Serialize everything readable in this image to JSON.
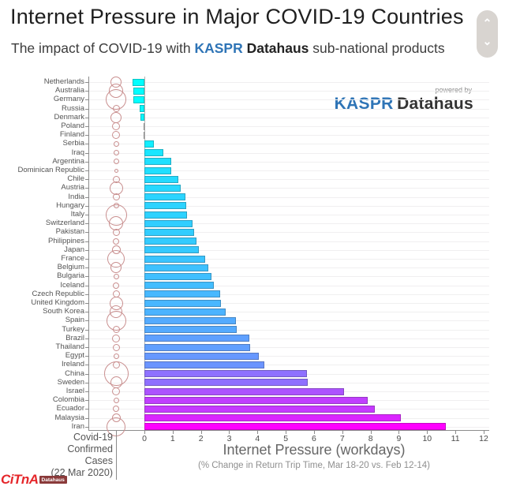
{
  "page": {
    "title": "Internet Pressure in Major COVID-19 Countries",
    "subtitle_prefix": "The impact of COVID-19 with ",
    "subtitle_brand1": "KASPR",
    "subtitle_brand2": "Datahaus",
    "subtitle_suffix": " sub-national products"
  },
  "scroll_widget": {
    "up_glyph": "⌃",
    "down_glyph": "⌄"
  },
  "logo": {
    "powered_by": "powered by",
    "brand1": "KASPR",
    "brand2": "Datahaus"
  },
  "watermark": {
    "text": "CiTnA",
    "badge": "Datahaus"
  },
  "chart_data": {
    "type": "bar",
    "orientation": "horizontal",
    "xlabel": "Internet Pressure (workdays)",
    "xlabel_note": "(% Change in Return Trip Time, Mar 18-20 vs. Feb 12-14)",
    "bubble_axis_note_lines": [
      "Covid-19",
      "Confirmed",
      "Cases",
      "(22 Mar 2020)"
    ],
    "x_ticks": [
      0,
      1,
      2,
      3,
      4,
      5,
      6,
      7,
      8,
      9,
      10,
      11,
      12
    ],
    "xlim": [
      -2,
      12.2
    ],
    "grid": "horizontal",
    "colormap": {
      "name": "cool",
      "low": "#00ffff",
      "high": "#ff00ff"
    },
    "bubble_color": "#c98f8f",
    "categories": [
      "Netherlands",
      "Australia",
      "Germany",
      "Russia",
      "Denmark",
      "Poland",
      "Finland",
      "Serbia",
      "Iraq",
      "Argentina",
      "Dominican Republic",
      "Chile",
      "Austria",
      "India",
      "Hungary",
      "Italy",
      "Switzerland",
      "Pakistan",
      "Philippines",
      "Japan",
      "France",
      "Belgium",
      "Bulgaria",
      "Iceland",
      "Czech Republic",
      "United Kingdom",
      "South Korea",
      "Spain",
      "Turkey",
      "Brazil",
      "Thailand",
      "Egypt",
      "Ireland",
      "China",
      "Sweden",
      "Israel",
      "Colombia",
      "Ecuador",
      "Malaysia",
      "Iran"
    ],
    "values": [
      -0.43,
      -0.4,
      -0.39,
      -0.16,
      -0.13,
      -0.02,
      -0.02,
      0.33,
      0.67,
      0.94,
      0.96,
      1.2,
      1.28,
      1.45,
      1.47,
      1.52,
      1.7,
      1.76,
      1.84,
      1.92,
      2.14,
      2.26,
      2.37,
      2.45,
      2.67,
      2.71,
      2.87,
      3.23,
      3.27,
      3.7,
      3.74,
      4.04,
      4.23,
      5.74,
      5.78,
      7.05,
      7.91,
      8.16,
      9.08,
      10.67
    ],
    "bubble_r": [
      7,
      9,
      13,
      4.5,
      7,
      5,
      5,
      3.5,
      3.5,
      3.5,
      2.5,
      4.5,
      8.5,
      4.5,
      3.5,
      13.5,
      9,
      4.5,
      4,
      5.5,
      11,
      7,
      3.5,
      4,
      4.5,
      8.5,
      8,
      12.5,
      4.5,
      5,
      4.5,
      3.5,
      4.5,
      15.5,
      7.5,
      5,
      3.5,
      4,
      5.5,
      12
    ]
  }
}
